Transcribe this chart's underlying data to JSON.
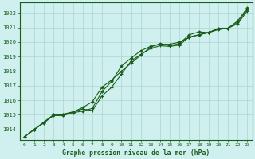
{
  "title": "Graphe pression niveau de la mer (hPa)",
  "bg_color": "#cff0ee",
  "grid_color": "#aad8cc",
  "line_color": "#1a5c1a",
  "marker_color": "#1a5c1a",
  "label_color": "#1a5c1a",
  "x_ticks": [
    0,
    1,
    2,
    3,
    4,
    5,
    6,
    7,
    8,
    9,
    10,
    11,
    12,
    13,
    14,
    15,
    16,
    17,
    18,
    19,
    20,
    21,
    22,
    23
  ],
  "ylim": [
    1013.3,
    1022.7
  ],
  "yticks": [
    1014,
    1015,
    1016,
    1017,
    1018,
    1019,
    1020,
    1021,
    1022
  ],
  "series1": [
    1013.5,
    1014.0,
    1014.5,
    1015.0,
    1015.05,
    1015.2,
    1015.4,
    1015.3,
    1016.3,
    1016.9,
    1017.8,
    1018.7,
    1019.15,
    1019.55,
    1019.75,
    1019.7,
    1019.8,
    1020.35,
    1020.5,
    1020.65,
    1020.9,
    1020.95,
    1021.25,
    1022.15
  ],
  "series2": [
    1013.5,
    1014.0,
    1014.5,
    1015.0,
    1015.0,
    1015.2,
    1015.5,
    1015.9,
    1016.9,
    1017.4,
    1018.0,
    1018.55,
    1019.1,
    1019.65,
    1019.9,
    1019.75,
    1019.9,
    1020.5,
    1020.7,
    1020.65,
    1020.95,
    1020.95,
    1021.35,
    1022.25
  ],
  "series3": [
    1013.5,
    1014.0,
    1014.45,
    1014.95,
    1014.95,
    1015.15,
    1015.25,
    1015.45,
    1016.6,
    1017.3,
    1018.35,
    1018.9,
    1019.4,
    1019.7,
    1019.85,
    1019.85,
    1020.0,
    1020.3,
    1020.5,
    1020.65,
    1020.85,
    1020.95,
    1021.45,
    1022.35
  ]
}
